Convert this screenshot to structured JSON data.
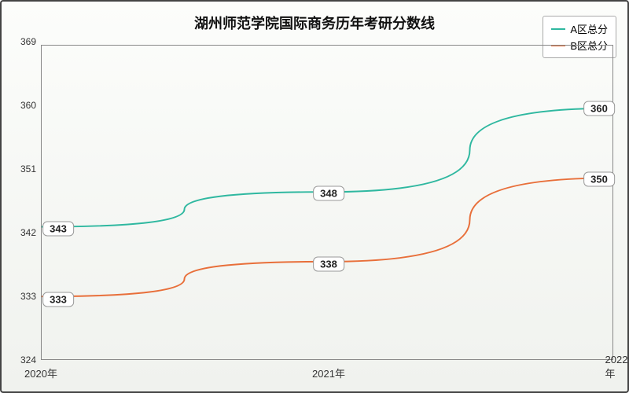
{
  "chart": {
    "type": "line",
    "title": "湖州师范学院国际商务历年考研分数线",
    "title_fontsize": 18,
    "background_gradient_top": "#fcfdfb",
    "background_gradient_bottom": "#f0f2ee",
    "border_color": "#444444",
    "plot_border_color": "#888888",
    "x": {
      "categories": [
        "2020年",
        "2021年",
        "2022年"
      ],
      "label_fontsize": 13
    },
    "y": {
      "min": 324,
      "max": 369,
      "tick_step": 9,
      "ticks": [
        324,
        333,
        342,
        351,
        360,
        369
      ],
      "label_fontsize": 12
    },
    "series": [
      {
        "name": "A区总分",
        "color": "#2fb8a0",
        "values": [
          343,
          348,
          360
        ],
        "line_width": 2
      },
      {
        "name": "B区总分",
        "color": "#e86f3a",
        "values": [
          333,
          338,
          350
        ],
        "line_width": 2
      }
    ],
    "legend": {
      "position": "top-right",
      "background": "#ffffff",
      "border_color": "#aaaaaa",
      "fontsize": 13
    },
    "data_label": {
      "background": "#ffffff",
      "border_color": "#999999",
      "fontsize": 13,
      "font_weight": "bold"
    }
  }
}
